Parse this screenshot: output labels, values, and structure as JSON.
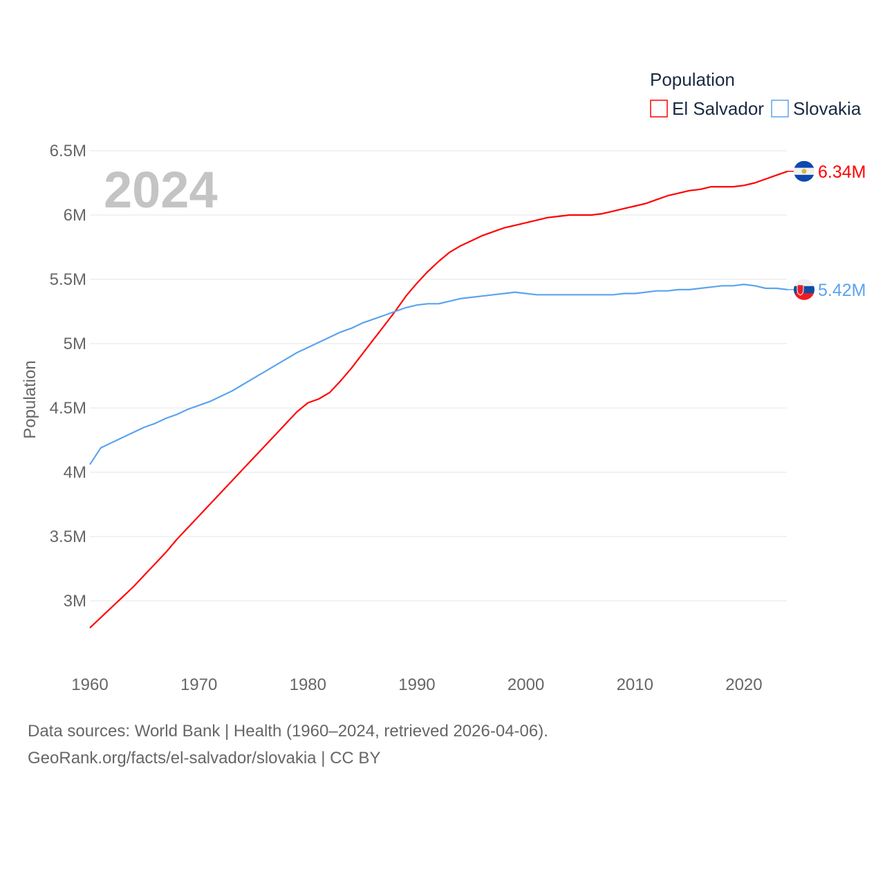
{
  "chart_data": {
    "type": "line",
    "title": "2024",
    "xlabel": "",
    "ylabel": "Population",
    "xlim": [
      1960,
      2024
    ],
    "ylim": [
      2.7,
      6.5
    ],
    "grid": true,
    "x_ticks": [
      1960,
      1970,
      1980,
      1990,
      2000,
      2010,
      2020
    ],
    "x_tick_labels": [
      "1960",
      "1970",
      "1980",
      "1990",
      "2000",
      "2010",
      "2020"
    ],
    "y_ticks": [
      3,
      3.5,
      4,
      4.5,
      5,
      5.5,
      6,
      6.5
    ],
    "y_tick_labels": [
      "3M",
      "3.5M",
      "4M",
      "4.5M",
      "5M",
      "5.5M",
      "6M",
      "6.5M"
    ],
    "legend": {
      "title": "Population",
      "position": "top-right"
    },
    "units": "millions",
    "x": [
      1960,
      1961,
      1962,
      1963,
      1964,
      1965,
      1966,
      1967,
      1968,
      1969,
      1970,
      1971,
      1972,
      1973,
      1974,
      1975,
      1976,
      1977,
      1978,
      1979,
      1980,
      1981,
      1982,
      1983,
      1984,
      1985,
      1986,
      1987,
      1988,
      1989,
      1990,
      1991,
      1992,
      1993,
      1994,
      1995,
      1996,
      1997,
      1998,
      1999,
      2000,
      2001,
      2002,
      2003,
      2004,
      2005,
      2006,
      2007,
      2008,
      2009,
      2010,
      2011,
      2012,
      2013,
      2014,
      2015,
      2016,
      2017,
      2018,
      2019,
      2020,
      2021,
      2022,
      2023,
      2024
    ],
    "series": [
      {
        "name": "El Salvador",
        "color": "#ff0000",
        "end_label": "6.34M",
        "flag": "el-salvador",
        "values": [
          2.79,
          2.87,
          2.95,
          3.03,
          3.11,
          3.2,
          3.29,
          3.38,
          3.48,
          3.57,
          3.66,
          3.75,
          3.84,
          3.93,
          4.02,
          4.11,
          4.2,
          4.29,
          4.38,
          4.47,
          4.54,
          4.57,
          4.62,
          4.71,
          4.81,
          4.92,
          5.03,
          5.14,
          5.25,
          5.37,
          5.47,
          5.56,
          5.64,
          5.71,
          5.76,
          5.8,
          5.84,
          5.87,
          5.9,
          5.92,
          5.94,
          5.96,
          5.98,
          5.99,
          6.0,
          6.0,
          6.0,
          6.01,
          6.03,
          6.05,
          6.07,
          6.09,
          6.12,
          6.15,
          6.17,
          6.19,
          6.2,
          6.22,
          6.22,
          6.22,
          6.23,
          6.25,
          6.28,
          6.31,
          6.34
        ]
      },
      {
        "name": "Slovakia",
        "color": "#5ba4ee",
        "end_label": "5.42M",
        "flag": "slovakia",
        "values": [
          4.06,
          4.19,
          4.23,
          4.27,
          4.31,
          4.35,
          4.38,
          4.42,
          4.45,
          4.49,
          4.52,
          4.55,
          4.59,
          4.63,
          4.68,
          4.73,
          4.78,
          4.83,
          4.88,
          4.93,
          4.97,
          5.01,
          5.05,
          5.09,
          5.12,
          5.16,
          5.19,
          5.22,
          5.25,
          5.28,
          5.3,
          5.31,
          5.31,
          5.33,
          5.35,
          5.36,
          5.37,
          5.38,
          5.39,
          5.4,
          5.39,
          5.38,
          5.38,
          5.38,
          5.38,
          5.38,
          5.38,
          5.38,
          5.38,
          5.39,
          5.39,
          5.4,
          5.41,
          5.41,
          5.42,
          5.42,
          5.43,
          5.44,
          5.45,
          5.45,
          5.46,
          5.45,
          5.43,
          5.43,
          5.42
        ]
      }
    ]
  },
  "footer": {
    "sources": "Data sources: World Bank | Health (1960–2024, retrieved 2026-04-06).",
    "attribution": "GeoRank.org/facts/el-salvador/slovakia | CC BY"
  }
}
